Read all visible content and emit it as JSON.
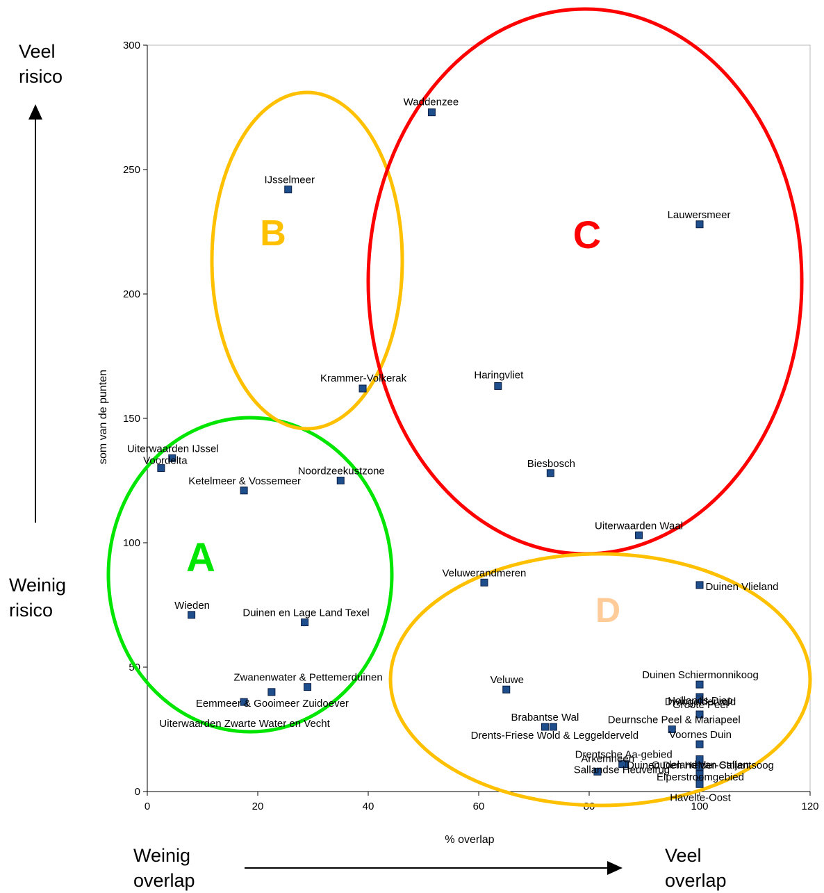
{
  "chart_data": {
    "type": "scatter",
    "xlabel": "% overlap",
    "ylabel": "som van de punten",
    "xlim": [
      0,
      120
    ],
    "ylim": [
      0,
      300
    ],
    "xticks": [
      0,
      20,
      40,
      60,
      80,
      100,
      120
    ],
    "yticks": [
      0,
      50,
      100,
      150,
      200,
      250,
      300
    ],
    "grid": false,
    "marker_color": "#1F4E8C",
    "points": [
      {
        "label": "Waddenzee",
        "x": 51.5,
        "y": 273
      },
      {
        "label": "IJsselmeer",
        "x": 25.5,
        "y": 242
      },
      {
        "label": "Lauwersmeer",
        "x": 100,
        "y": 228
      },
      {
        "label": "Krammer-Volkerak",
        "x": 39,
        "y": 162
      },
      {
        "label": "Haringvliet",
        "x": 63.5,
        "y": 163
      },
      {
        "label": "Uiterwaarden IJssel",
        "x": 4.5,
        "y": 134
      },
      {
        "label": "Voordelta",
        "x": 2.5,
        "y": 130
      },
      {
        "label": "Biesbosch",
        "x": 73,
        "y": 128
      },
      {
        "label": "Noordzeekustzone",
        "x": 35,
        "y": 125
      },
      {
        "label": "Ketelmeer & Vossemeer",
        "x": 17.5,
        "y": 121
      },
      {
        "label": "Uiterwaarden Waal",
        "x": 89,
        "y": 103
      },
      {
        "label": "Veluwerandmeren",
        "x": 61,
        "y": 84
      },
      {
        "label": "Duinen Vlieland",
        "x": 100,
        "y": 83
      },
      {
        "label": "Wieden",
        "x": 8,
        "y": 71
      },
      {
        "label": "Duinen en Lage Land Texel",
        "x": 28.5,
        "y": 68
      },
      {
        "label": "Zwanenwater & Pettemerduinen",
        "x": 29,
        "y": 42
      },
      {
        "label": "Eemmeer & Gooimeer Zuidoever",
        "x": 22.5,
        "y": 40
      },
      {
        "label": "Uiterwaarden Zwarte Water en Vecht",
        "x": 17.5,
        "y": 36
      },
      {
        "label": "Veluwe",
        "x": 65,
        "y": 41
      },
      {
        "label": "Duinen Schiermonnikoog",
        "x": 100,
        "y": 43
      },
      {
        "label": "Hollands Diep",
        "x": 100,
        "y": 38
      },
      {
        "label": "Dwingelderveld",
        "x": 100,
        "y": 37
      },
      {
        "label": "Groote Peel",
        "x": 100,
        "y": 31
      },
      {
        "label": "Brabantse Wal",
        "x": 72,
        "y": 26
      },
      {
        "label": "Drents-Friese Wold & Leggelderveld",
        "x": 73.5,
        "y": 26
      },
      {
        "label": "Deurnsche Peel & Mariapeel",
        "x": 95,
        "y": 25
      },
      {
        "label": "Voornes Duin",
        "x": 100,
        "y": 19
      },
      {
        "label": "Oudeland van Strijen",
        "x": 100,
        "y": 13
      },
      {
        "label": "Drentsche Aa-gebied",
        "x": 86.5,
        "y": 11
      },
      {
        "label": "Arkemheen",
        "x": 86,
        "y": 11
      },
      {
        "label": "Sallandse Heuvelrug",
        "x": 81.5,
        "y": 8
      },
      {
        "label": "Duinen Den Helder-Callantsoog",
        "x": 100,
        "y": 10
      },
      {
        "label": "Elperstroomgebied",
        "x": 100,
        "y": 7
      },
      {
        "label": "Havelte-Oost",
        "x": 100,
        "y": 4
      },
      {
        "label": "",
        "x": 100,
        "y": 3
      }
    ],
    "groups": [
      {
        "label": "A",
        "color": "#00E600"
      },
      {
        "label": "B",
        "color": "#FFC000"
      },
      {
        "label": "C",
        "color": "#FF0000"
      },
      {
        "label": "D",
        "color": "#FFC000",
        "label_color": "#FFCC99"
      }
    ]
  },
  "annotations": {
    "veel_risico": [
      "Veel",
      "risico"
    ],
    "weinig_risico": [
      "Weinig",
      "risico"
    ],
    "weinig_overlap": [
      "Weinig",
      "overlap"
    ],
    "veel_overlap": [
      "Veel",
      "overlap"
    ]
  }
}
